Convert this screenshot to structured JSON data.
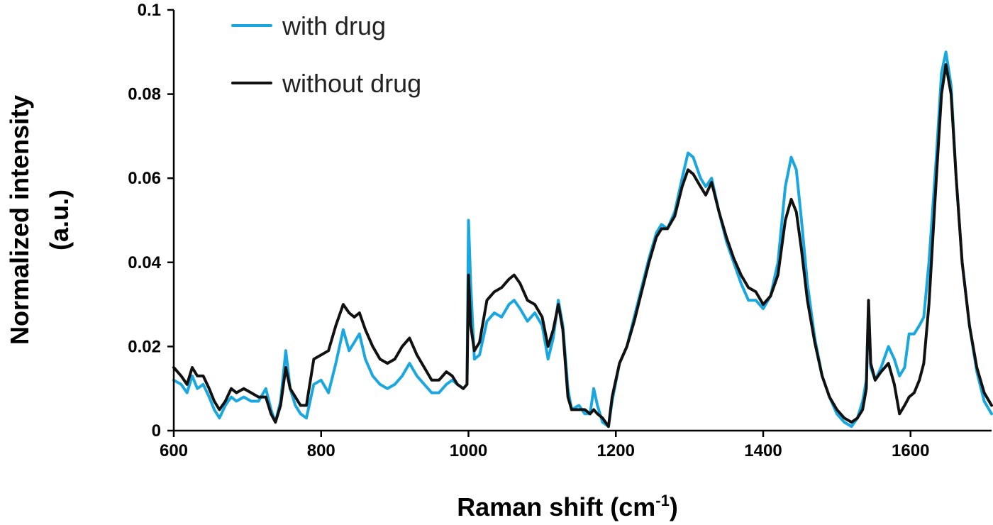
{
  "chart_data": {
    "type": "line",
    "xlabel": "Raman shift (cm",
    "xlabel_sup": "-1",
    "xlabel_end": ")",
    "ylabel_line1": "Normalized intensity",
    "ylabel_line2": "(a.u.)",
    "xlim": [
      600,
      1710
    ],
    "ylim": [
      0,
      0.1
    ],
    "x_ticks": [
      600,
      800,
      1000,
      1200,
      1400,
      1600
    ],
    "x_tick_labels": [
      "600",
      "800",
      "1000",
      "1200",
      "1400",
      "1600"
    ],
    "y_ticks": [
      0,
      0.02,
      0.04,
      0.06,
      0.08,
      0.1
    ],
    "y_tick_labels": [
      "0",
      "0.02",
      "0.04",
      "0.06",
      "0.08",
      "0.1"
    ],
    "grid": false,
    "legend_position": "top-left",
    "series": [
      {
        "name": "with drug",
        "color": "#1aa7e0",
        "points": [
          [
            600,
            0.012
          ],
          [
            610,
            0.011
          ],
          [
            618,
            0.009
          ],
          [
            625,
            0.013
          ],
          [
            632,
            0.01
          ],
          [
            640,
            0.011
          ],
          [
            648,
            0.008
          ],
          [
            655,
            0.005
          ],
          [
            662,
            0.003
          ],
          [
            670,
            0.006
          ],
          [
            678,
            0.008
          ],
          [
            685,
            0.007
          ],
          [
            695,
            0.008
          ],
          [
            705,
            0.007
          ],
          [
            715,
            0.007
          ],
          [
            725,
            0.01
          ],
          [
            732,
            0.005
          ],
          [
            738,
            0.002
          ],
          [
            745,
            0.007
          ],
          [
            752,
            0.019
          ],
          [
            758,
            0.01
          ],
          [
            765,
            0.006
          ],
          [
            772,
            0.004
          ],
          [
            780,
            0.003
          ],
          [
            790,
            0.011
          ],
          [
            800,
            0.012
          ],
          [
            810,
            0.009
          ],
          [
            820,
            0.016
          ],
          [
            830,
            0.024
          ],
          [
            838,
            0.019
          ],
          [
            845,
            0.021
          ],
          [
            852,
            0.023
          ],
          [
            860,
            0.017
          ],
          [
            870,
            0.013
          ],
          [
            880,
            0.011
          ],
          [
            890,
            0.01
          ],
          [
            900,
            0.011
          ],
          [
            910,
            0.013
          ],
          [
            920,
            0.016
          ],
          [
            930,
            0.013
          ],
          [
            940,
            0.011
          ],
          [
            950,
            0.009
          ],
          [
            960,
            0.009
          ],
          [
            970,
            0.011
          ],
          [
            978,
            0.012
          ],
          [
            985,
            0.011
          ],
          [
            993,
            0.01
          ],
          [
            998,
            0.011
          ],
          [
            1000,
            0.05
          ],
          [
            1003,
            0.035
          ],
          [
            1008,
            0.017
          ],
          [
            1015,
            0.018
          ],
          [
            1025,
            0.026
          ],
          [
            1035,
            0.028
          ],
          [
            1045,
            0.027
          ],
          [
            1055,
            0.03
          ],
          [
            1062,
            0.031
          ],
          [
            1070,
            0.029
          ],
          [
            1080,
            0.026
          ],
          [
            1090,
            0.028
          ],
          [
            1100,
            0.025
          ],
          [
            1108,
            0.017
          ],
          [
            1115,
            0.022
          ],
          [
            1122,
            0.031
          ],
          [
            1128,
            0.025
          ],
          [
            1135,
            0.01
          ],
          [
            1140,
            0.005
          ],
          [
            1150,
            0.006
          ],
          [
            1158,
            0.004
          ],
          [
            1165,
            0.004
          ],
          [
            1170,
            0.01
          ],
          [
            1175,
            0.006
          ],
          [
            1182,
            0.002
          ],
          [
            1190,
            0.001
          ],
          [
            1195,
            0.007
          ],
          [
            1205,
            0.016
          ],
          [
            1215,
            0.02
          ],
          [
            1225,
            0.027
          ],
          [
            1235,
            0.034
          ],
          [
            1245,
            0.041
          ],
          [
            1255,
            0.047
          ],
          [
            1262,
            0.049
          ],
          [
            1270,
            0.048
          ],
          [
            1280,
            0.052
          ],
          [
            1290,
            0.06
          ],
          [
            1298,
            0.066
          ],
          [
            1305,
            0.065
          ],
          [
            1315,
            0.06
          ],
          [
            1322,
            0.058
          ],
          [
            1330,
            0.06
          ],
          [
            1340,
            0.052
          ],
          [
            1350,
            0.045
          ],
          [
            1360,
            0.04
          ],
          [
            1370,
            0.035
          ],
          [
            1380,
            0.031
          ],
          [
            1390,
            0.031
          ],
          [
            1400,
            0.029
          ],
          [
            1410,
            0.032
          ],
          [
            1420,
            0.04
          ],
          [
            1430,
            0.058
          ],
          [
            1438,
            0.065
          ],
          [
            1445,
            0.062
          ],
          [
            1452,
            0.05
          ],
          [
            1460,
            0.035
          ],
          [
            1470,
            0.022
          ],
          [
            1480,
            0.013
          ],
          [
            1490,
            0.008
          ],
          [
            1500,
            0.004
          ],
          [
            1510,
            0.002
          ],
          [
            1520,
            0.001
          ],
          [
            1528,
            0.003
          ],
          [
            1535,
            0.007
          ],
          [
            1540,
            0.012
          ],
          [
            1543,
            0.03
          ],
          [
            1546,
            0.015
          ],
          [
            1552,
            0.012
          ],
          [
            1560,
            0.015
          ],
          [
            1570,
            0.02
          ],
          [
            1578,
            0.017
          ],
          [
            1585,
            0.013
          ],
          [
            1592,
            0.015
          ],
          [
            1598,
            0.023
          ],
          [
            1605,
            0.023
          ],
          [
            1612,
            0.025
          ],
          [
            1618,
            0.027
          ],
          [
            1625,
            0.04
          ],
          [
            1635,
            0.065
          ],
          [
            1642,
            0.085
          ],
          [
            1648,
            0.09
          ],
          [
            1655,
            0.082
          ],
          [
            1662,
            0.06
          ],
          [
            1670,
            0.04
          ],
          [
            1680,
            0.025
          ],
          [
            1690,
            0.014
          ],
          [
            1700,
            0.007
          ],
          [
            1710,
            0.004
          ]
        ]
      },
      {
        "name": "without drug",
        "color": "#111111",
        "points": [
          [
            600,
            0.015
          ],
          [
            610,
            0.013
          ],
          [
            618,
            0.011
          ],
          [
            625,
            0.015
          ],
          [
            632,
            0.013
          ],
          [
            640,
            0.013
          ],
          [
            648,
            0.01
          ],
          [
            655,
            0.007
          ],
          [
            662,
            0.005
          ],
          [
            670,
            0.007
          ],
          [
            678,
            0.01
          ],
          [
            685,
            0.009
          ],
          [
            695,
            0.01
          ],
          [
            705,
            0.009
          ],
          [
            715,
            0.008
          ],
          [
            725,
            0.008
          ],
          [
            732,
            0.004
          ],
          [
            738,
            0.002
          ],
          [
            745,
            0.006
          ],
          [
            752,
            0.015
          ],
          [
            758,
            0.01
          ],
          [
            765,
            0.008
          ],
          [
            772,
            0.006
          ],
          [
            780,
            0.006
          ],
          [
            790,
            0.017
          ],
          [
            800,
            0.018
          ],
          [
            810,
            0.019
          ],
          [
            820,
            0.025
          ],
          [
            830,
            0.03
          ],
          [
            838,
            0.028
          ],
          [
            845,
            0.027
          ],
          [
            852,
            0.028
          ],
          [
            860,
            0.024
          ],
          [
            870,
            0.02
          ],
          [
            880,
            0.017
          ],
          [
            890,
            0.016
          ],
          [
            900,
            0.017
          ],
          [
            910,
            0.02
          ],
          [
            920,
            0.022
          ],
          [
            930,
            0.018
          ],
          [
            940,
            0.015
          ],
          [
            950,
            0.012
          ],
          [
            960,
            0.012
          ],
          [
            970,
            0.014
          ],
          [
            978,
            0.013
          ],
          [
            985,
            0.011
          ],
          [
            993,
            0.01
          ],
          [
            998,
            0.011
          ],
          [
            1000,
            0.037
          ],
          [
            1003,
            0.025
          ],
          [
            1008,
            0.019
          ],
          [
            1015,
            0.021
          ],
          [
            1025,
            0.031
          ],
          [
            1035,
            0.033
          ],
          [
            1045,
            0.034
          ],
          [
            1055,
            0.036
          ],
          [
            1062,
            0.037
          ],
          [
            1070,
            0.035
          ],
          [
            1080,
            0.031
          ],
          [
            1090,
            0.03
          ],
          [
            1100,
            0.027
          ],
          [
            1108,
            0.02
          ],
          [
            1115,
            0.024
          ],
          [
            1122,
            0.03
          ],
          [
            1128,
            0.024
          ],
          [
            1135,
            0.008
          ],
          [
            1140,
            0.005
          ],
          [
            1150,
            0.005
          ],
          [
            1158,
            0.005
          ],
          [
            1165,
            0.004
          ],
          [
            1170,
            0.005
          ],
          [
            1175,
            0.004
          ],
          [
            1182,
            0.003
          ],
          [
            1190,
            0.001
          ],
          [
            1195,
            0.008
          ],
          [
            1205,
            0.016
          ],
          [
            1215,
            0.02
          ],
          [
            1225,
            0.026
          ],
          [
            1235,
            0.033
          ],
          [
            1245,
            0.04
          ],
          [
            1255,
            0.046
          ],
          [
            1262,
            0.048
          ],
          [
            1270,
            0.048
          ],
          [
            1280,
            0.051
          ],
          [
            1290,
            0.058
          ],
          [
            1298,
            0.062
          ],
          [
            1305,
            0.061
          ],
          [
            1315,
            0.058
          ],
          [
            1322,
            0.056
          ],
          [
            1330,
            0.059
          ],
          [
            1340,
            0.052
          ],
          [
            1350,
            0.046
          ],
          [
            1360,
            0.041
          ],
          [
            1370,
            0.037
          ],
          [
            1380,
            0.034
          ],
          [
            1390,
            0.033
          ],
          [
            1400,
            0.03
          ],
          [
            1410,
            0.032
          ],
          [
            1420,
            0.037
          ],
          [
            1430,
            0.05
          ],
          [
            1438,
            0.055
          ],
          [
            1445,
            0.052
          ],
          [
            1452,
            0.043
          ],
          [
            1460,
            0.031
          ],
          [
            1470,
            0.021
          ],
          [
            1480,
            0.013
          ],
          [
            1490,
            0.008
          ],
          [
            1500,
            0.005
          ],
          [
            1510,
            0.003
          ],
          [
            1520,
            0.002
          ],
          [
            1528,
            0.003
          ],
          [
            1535,
            0.005
          ],
          [
            1540,
            0.01
          ],
          [
            1543,
            0.031
          ],
          [
            1546,
            0.016
          ],
          [
            1552,
            0.012
          ],
          [
            1560,
            0.014
          ],
          [
            1570,
            0.016
          ],
          [
            1578,
            0.011
          ],
          [
            1585,
            0.004
          ],
          [
            1592,
            0.006
          ],
          [
            1598,
            0.008
          ],
          [
            1605,
            0.009
          ],
          [
            1612,
            0.012
          ],
          [
            1618,
            0.016
          ],
          [
            1625,
            0.03
          ],
          [
            1635,
            0.06
          ],
          [
            1642,
            0.08
          ],
          [
            1648,
            0.087
          ],
          [
            1655,
            0.08
          ],
          [
            1662,
            0.06
          ],
          [
            1670,
            0.04
          ],
          [
            1680,
            0.025
          ],
          [
            1690,
            0.015
          ],
          [
            1700,
            0.009
          ],
          [
            1710,
            0.006
          ]
        ]
      }
    ]
  }
}
